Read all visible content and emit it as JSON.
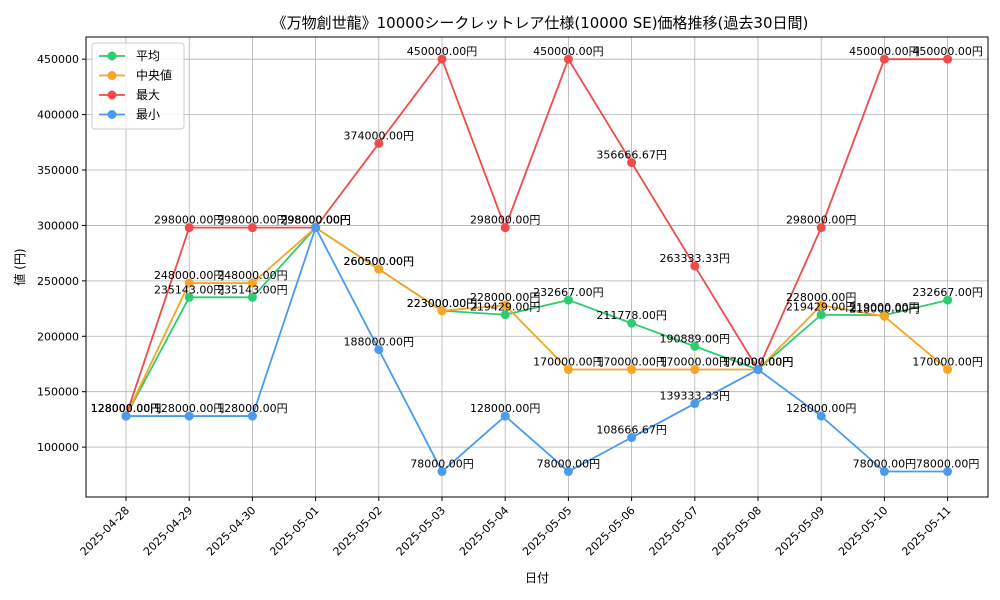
{
  "chart_data": {
    "type": "line",
    "title": "《万物創世龍》10000シークレットレア仕様(10000 SE)価格推移(過去30日間)",
    "xlabel": "日付",
    "ylabel": "値 (円)",
    "ylim": [
      55000,
      470000
    ],
    "yticks": [
      "100000",
      "150000",
      "200000",
      "250000",
      "300000",
      "350000",
      "400000",
      "450000"
    ],
    "grid": true,
    "legend_position": "top-left",
    "categories": [
      "2025-04-28",
      "2025-04-29",
      "2025-04-30",
      "2025-05-01",
      "2025-05-02",
      "2025-05-03",
      "2025-05-04",
      "2025-05-05",
      "2025-05-06",
      "2025-05-07",
      "2025-05-08",
      "2025-05-09",
      "2025-05-10",
      "2025-05-11"
    ],
    "series": [
      {
        "name": "平均",
        "color": "#2ecc71",
        "values": [
          128000,
          235143,
          235143,
          298000,
          260500,
          223000,
          219429,
          232667,
          211778,
          190889,
          170000,
          219429,
          219000,
          232667
        ],
        "labels": [
          "128000.00円",
          "235143.00円",
          "235143.00円",
          "298000.00円",
          "260500.00円",
          "223000.00円",
          "219429.00円",
          "232667.00円",
          "211778.00円",
          "190889.00円",
          "170000.00円",
          "219429.00円",
          "219000.00円",
          "232667.00円"
        ]
      },
      {
        "name": "中央値",
        "color": "#f5a623",
        "values": [
          128000,
          248000,
          248000,
          298000,
          260500,
          223000,
          228000,
          170000,
          170000,
          170000,
          170000,
          228000,
          218000,
          170000
        ],
        "labels": [
          "128000.00円",
          "248000.00円",
          "248000.00円",
          "298000.00円",
          "260500.00円",
          "223000.00円",
          "228000.00円",
          "170000.00円",
          "170000.00円",
          "170000.00円",
          "170000.00円",
          "228000.00円",
          "218000.00円",
          "170000.00円"
        ]
      },
      {
        "name": "最大",
        "color": "#ef4b4b",
        "values": [
          128000,
          298000,
          298000,
          298000,
          374000,
          450000,
          298000,
          450000,
          356667,
          263333,
          170000,
          298000,
          450000,
          450000
        ],
        "labels": [
          "128000.00円",
          "298000.00円",
          "298000.00円",
          "298000.00円",
          "374000.00円",
          "450000.00円",
          "298000.00円",
          "450000.00円",
          "356666.67円",
          "263333.33円",
          "170000.00円",
          "298000.00円",
          "450000.00円",
          "450000.00円"
        ]
      },
      {
        "name": "最小",
        "color": "#4a9af0",
        "values": [
          128000,
          128000,
          128000,
          298000,
          188000,
          78000,
          128000,
          78000,
          108667,
          139333,
          170000,
          128000,
          78000,
          78000
        ],
        "labels": [
          "128000.00円",
          "128000.00円",
          "128000.00円",
          "298000.00円",
          "188000.00円",
          "78000.00円",
          "128000.00円",
          "78000.00円",
          "108666.67円",
          "139333.33円",
          "170000.00円",
          "128000.00円",
          "78000.00円",
          "78000.00円"
        ]
      }
    ]
  }
}
